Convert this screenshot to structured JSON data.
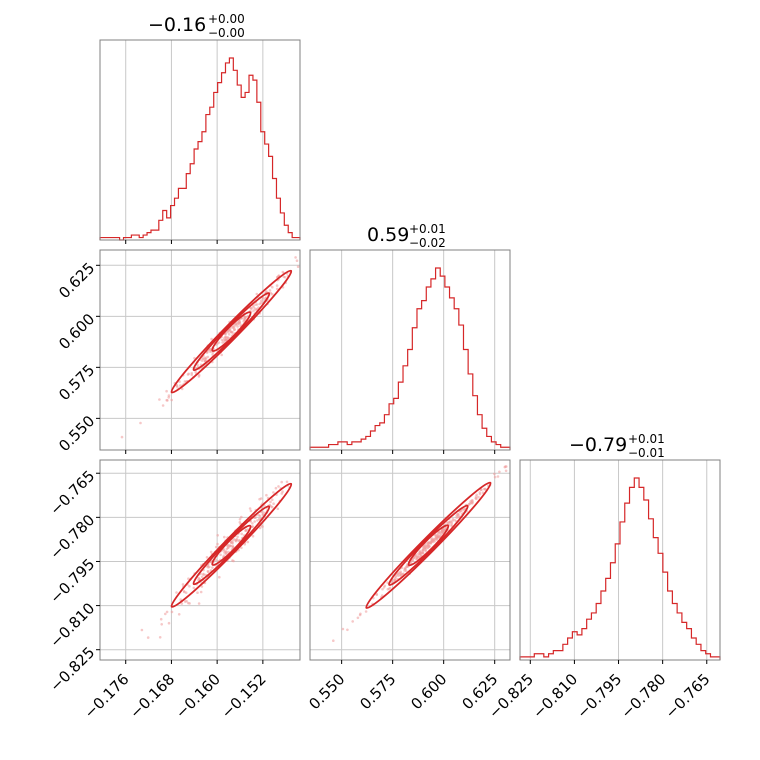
{
  "colors": {
    "line": "#d62728",
    "grid": "#c8c8c8",
    "frame": "#808080",
    "point": "#ef9a9a"
  },
  "titles": [
    {
      "main": "−0.16",
      "plus": "+0.00",
      "minus": "−0.00"
    },
    {
      "main": "0.59",
      "plus": "+0.01",
      "minus": "−0.02"
    },
    {
      "main": "−0.79",
      "plus": "+0.01",
      "minus": "−0.01"
    }
  ],
  "chart_data": {
    "type": "corner",
    "grid": true,
    "parameters": [
      {
        "range": [
          -0.1805,
          -0.1455
        ],
        "ticks": [
          -0.176,
          -0.168,
          -0.16,
          -0.152
        ],
        "tick_labels": [
          "−0.176",
          "−0.168",
          "−0.160",
          "−0.152"
        ]
      },
      {
        "range": [
          0.5345,
          0.6325
        ],
        "ticks": [
          0.55,
          0.575,
          0.6,
          0.625
        ],
        "tick_labels": [
          "0.550",
          "0.575",
          "0.600",
          "0.625"
        ]
      },
      {
        "range": [
          -0.8285,
          -0.7605
        ],
        "ticks": [
          -0.825,
          -0.81,
          -0.795,
          -0.78,
          -0.765
        ],
        "tick_labels": [
          "−0.825",
          "−0.810",
          "−0.795",
          "−0.780",
          "−0.765"
        ]
      }
    ],
    "histograms": [
      {
        "param": 0,
        "counts": [
          1,
          1,
          1,
          1,
          1,
          0,
          1,
          1,
          2,
          2,
          1,
          2,
          3,
          4,
          4,
          8,
          12,
          9,
          14,
          17,
          21,
          21,
          27,
          31,
          37,
          40,
          44,
          51,
          54,
          60,
          64,
          68,
          72,
          74,
          69,
          63,
          58,
          60,
          67,
          65,
          56,
          44,
          39,
          34,
          25,
          17,
          11,
          6,
          3,
          1,
          1
        ]
      },
      {
        "param": 1,
        "counts": [
          1,
          1,
          1,
          1,
          2,
          2,
          3,
          3,
          2,
          3,
          3,
          4,
          5,
          7,
          9,
          10,
          13,
          17,
          19,
          25,
          31,
          37,
          45,
          52,
          55,
          60,
          63,
          67,
          64,
          60,
          56,
          52,
          46,
          37,
          28,
          20,
          13,
          8,
          5,
          3,
          2,
          1,
          1
        ]
      },
      {
        "param": 2,
        "counts": [
          1,
          1,
          1,
          2,
          2,
          1,
          2,
          3,
          3,
          5,
          7,
          9,
          8,
          10,
          13,
          15,
          18,
          22,
          26,
          31,
          37,
          44,
          50,
          55,
          58,
          55,
          51,
          45,
          39,
          34,
          28,
          22,
          18,
          15,
          12,
          10,
          7,
          5,
          3,
          2,
          1,
          1
        ]
      }
    ],
    "scatter_pairs": [
      {
        "x_param": 0,
        "y_param": 1,
        "relation": "y ≈ 0.5925 + 2.85 × (x + 0.1575)"
      },
      {
        "x_param": 0,
        "y_param": 2,
        "relation": "y ≈ −0.7895 + 2.0 × (x + 0.1575)"
      },
      {
        "x_param": 1,
        "y_param": 2,
        "relation": "y ≈ −0.7895 + 0.70 × (x − 0.5925)"
      }
    ]
  }
}
